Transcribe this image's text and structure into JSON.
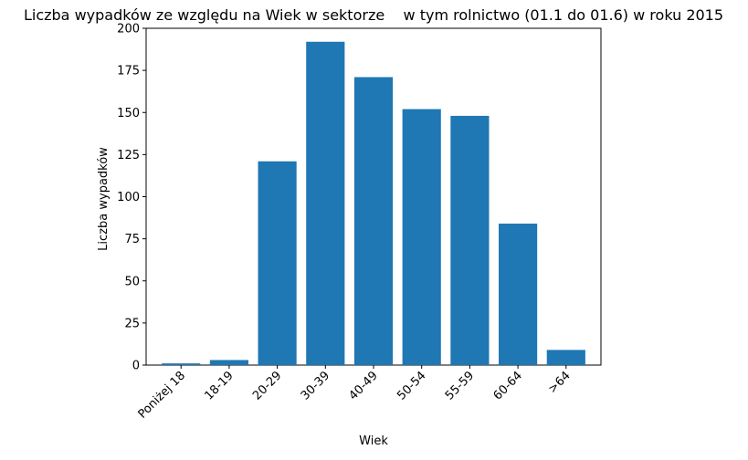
{
  "chart_data": {
    "type": "bar",
    "title": "Liczba wypadków ze względu na Wiek w sektorze    w tym rolnictwo (01.1 do 01.6) w roku 2015",
    "xlabel": "Wiek",
    "ylabel": "Liczba wypadków",
    "categories": [
      "Poniżej 18",
      "18-19",
      "20-29",
      "30-39",
      "40-49",
      "50-54",
      "55-59",
      "60-64",
      ">64"
    ],
    "values": [
      1,
      3,
      121,
      192,
      171,
      152,
      148,
      84,
      9
    ],
    "ylim": [
      0,
      200
    ],
    "yticks": [
      0,
      25,
      50,
      75,
      100,
      125,
      150,
      175,
      200
    ],
    "bar_color": "#1f77b4",
    "grid": false,
    "legend": "none"
  }
}
